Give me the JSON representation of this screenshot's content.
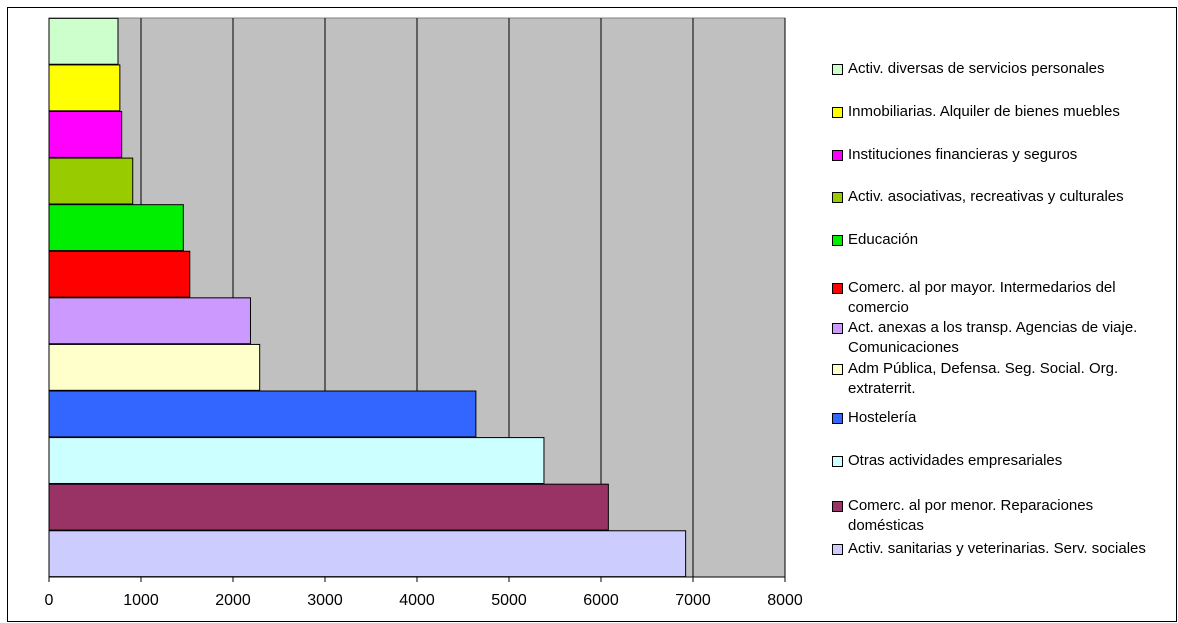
{
  "chart_data": {
    "type": "bar",
    "orientation": "horizontal",
    "title": "",
    "xlabel": "",
    "ylabel": "",
    "xlim": [
      0,
      8000
    ],
    "x_ticks": [
      "0",
      "1000",
      "2000",
      "3000",
      "4000",
      "5000",
      "6000",
      "7000",
      "8000"
    ],
    "grid": "vertical",
    "legend_position": "right",
    "plot_background": "#c0c0c0",
    "categories": [
      {
        "name": "Activ. sanitarias y veterinarias. Serv. sociales",
        "value": 6920,
        "color": "#ccccff"
      },
      {
        "name": "Comerc. al por menor. Reparaciones domésticas",
        "value": 6080,
        "color": "#993366"
      },
      {
        "name": "Otras actividades empresariales",
        "value": 5380,
        "color": "#ccffff"
      },
      {
        "name": "Hostelería",
        "value": 4640,
        "color": "#3366ff"
      },
      {
        "name": "Adm Pública, Defensa. Seg. Social. Org. extraterrit.",
        "value": 2290,
        "color": "#ffffcc"
      },
      {
        "name": "Act. anexas a los transp. Agencias de viaje. Comunicaciones",
        "value": 2190,
        "color": "#cc99ff"
      },
      {
        "name": "Comerc. al por mayor. Intermedarios del comercio",
        "value": 1530,
        "color": "#ff0000"
      },
      {
        "name": "Educación",
        "value": 1460,
        "color": "#00ee00"
      },
      {
        "name": "Activ. asociativas, recreativas y culturales",
        "value": 910,
        "color": "#99cc00"
      },
      {
        "name": "Instituciones financieras y seguros",
        "value": 790,
        "color": "#ff00ff"
      },
      {
        "name": "Inmobiliarias. Alquiler de bienes muebles",
        "value": 770,
        "color": "#ffff00"
      },
      {
        "name": "Activ. diversas de servicios personales",
        "value": 750,
        "color": "#ccffcc"
      }
    ]
  }
}
